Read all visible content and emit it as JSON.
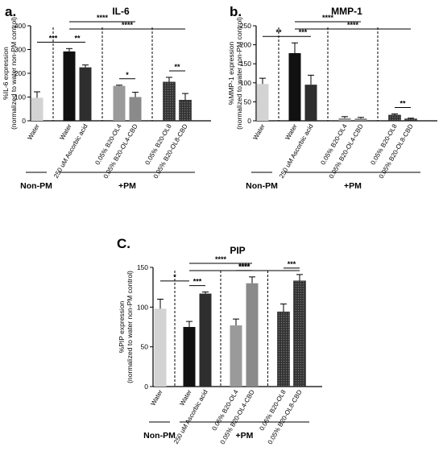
{
  "chart_data": [
    {
      "panel": "a.",
      "type": "bar",
      "title": "IL-6",
      "ylabel": [
        "%IL-6 expression",
        "(normalized to water non-PM control)"
      ],
      "ylim": [
        0,
        400
      ],
      "yticks": [
        0,
        100,
        200,
        300,
        400
      ],
      "categories": [
        "Water",
        "Water",
        "250 uM Ascorbic acid",
        "0.05% B20-OL4",
        "0.05% B20-OL4-CBD",
        "0.05% B20-OL8",
        "0.05% B20-OL8-CBD"
      ],
      "values": [
        97,
        292,
        225,
        147,
        100,
        163,
        87
      ],
      "errors": [
        25,
        12,
        10,
        3,
        20,
        20,
        28
      ],
      "colors": [
        "#d3d3d3",
        "#111111",
        "#2e2e2e",
        "#9a9a9a",
        "#8a8a8a",
        "#4a4a4a",
        "#3a3a3a"
      ],
      "patterns": [
        false,
        false,
        false,
        false,
        false,
        true,
        true
      ],
      "separators_after": [
        0,
        2,
        4
      ],
      "groups": [
        {
          "label": "Non-PM",
          "from": 0,
          "to": 0
        },
        {
          "label": "+PM",
          "from": 1,
          "to": 6
        }
      ],
      "significance": [
        {
          "from": 0,
          "to": 1,
          "label": "***"
        },
        {
          "from": 1,
          "to": 2,
          "label": "**"
        },
        {
          "from": 1,
          "to": 4,
          "label": "****"
        },
        {
          "from": 1,
          "to": 6,
          "label": "****"
        },
        {
          "from": 3,
          "to": 4,
          "label": "*"
        },
        {
          "from": 5,
          "to": 6,
          "label": "**"
        }
      ]
    },
    {
      "panel": "b.",
      "type": "bar",
      "title": "MMP-1",
      "ylabel": [
        "%MMP-1 expression",
        "(normalized to water non-PM control)"
      ],
      "ylim": [
        0,
        250
      ],
      "yticks": [
        0,
        50,
        100,
        150,
        200,
        250
      ],
      "categories": [
        "Water",
        "Water",
        "250 uM Ascorbic acid",
        "0.05% B20-OL4",
        "0.05% B20-OL4-CBD",
        "0.05% B20-OL8",
        "0.05% B20-OL8-CBD"
      ],
      "values": [
        97,
        178,
        95,
        7,
        6,
        15,
        5
      ],
      "errors": [
        15,
        27,
        25,
        4,
        3,
        3,
        2
      ],
      "colors": [
        "#d3d3d3",
        "#111111",
        "#2e2e2e",
        "#9a9a9a",
        "#8a8a8a",
        "#4a4a4a",
        "#3a3a3a"
      ],
      "patterns": [
        false,
        false,
        false,
        false,
        false,
        true,
        true
      ],
      "separators_after": [
        0,
        2,
        4
      ],
      "groups": [
        {
          "label": "Non-PM",
          "from": 0,
          "to": 0
        },
        {
          "label": "+PM",
          "from": 1,
          "to": 6
        }
      ],
      "significance": [
        {
          "from": 0,
          "to": 1,
          "label": "**"
        },
        {
          "from": 1,
          "to": 2,
          "label": "***"
        },
        {
          "from": 1,
          "to": 4,
          "label": "****"
        },
        {
          "from": 1,
          "to": 6,
          "label": "****"
        },
        {
          "from": 5,
          "to": 6,
          "label": "**"
        }
      ]
    },
    {
      "panel": "C.",
      "type": "bar",
      "title": "PIP",
      "ylabel": [
        "%PIP expression",
        "(normalized to water non-PM control)"
      ],
      "ylim": [
        0,
        150
      ],
      "yticks": [
        0,
        50,
        100,
        150
      ],
      "categories": [
        "Water",
        "Water",
        "250 uM Ascorbic acid",
        "0.05% B20-OL4",
        "0.05% B20-OL4-CBD",
        "0.05% B20-OL8",
        "0.05% B20-OL8-CBD"
      ],
      "values": [
        98,
        75,
        117,
        77,
        130,
        94,
        133
      ],
      "errors": [
        12,
        7,
        2,
        8,
        8,
        10,
        8
      ],
      "colors": [
        "#d3d3d3",
        "#111111",
        "#2e2e2e",
        "#9a9a9a",
        "#8a8a8a",
        "#4a4a4a",
        "#3a3a3a"
      ],
      "patterns": [
        false,
        false,
        false,
        false,
        false,
        true,
        true
      ],
      "separators_after": [
        0,
        2,
        4
      ],
      "groups": [
        {
          "label": "Non-PM",
          "from": 0,
          "to": 0
        },
        {
          "label": "+PM",
          "from": 1,
          "to": 6
        }
      ],
      "significance": [
        {
          "from": 0,
          "to": 1,
          "label": "*"
        },
        {
          "from": 1,
          "to": 2,
          "label": "***"
        },
        {
          "from": 1,
          "to": 4,
          "label": "****"
        },
        {
          "from": 3,
          "to": 4,
          "label": "****"
        },
        {
          "from": 1,
          "to": 6,
          "label": "****"
        },
        {
          "from": 5,
          "to": 6,
          "label": "***"
        }
      ]
    }
  ]
}
